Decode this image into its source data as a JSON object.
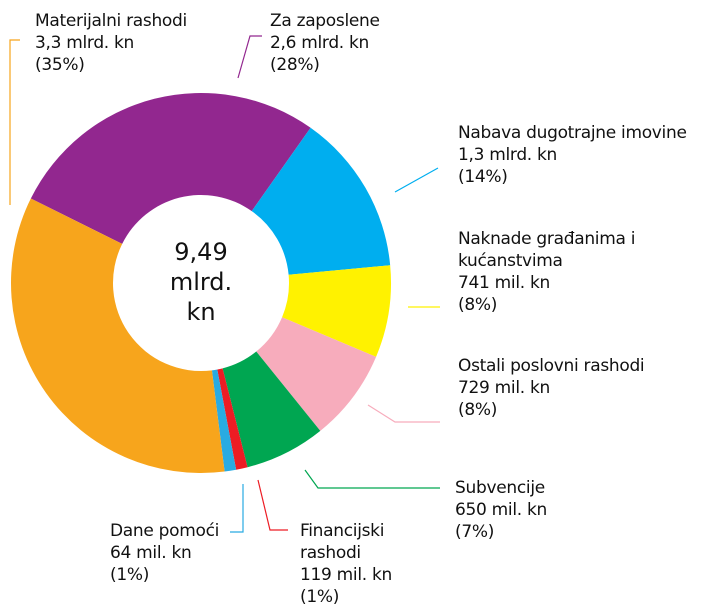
{
  "chart_data": {
    "type": "pie",
    "donut": true,
    "center_label": [
      "9,49",
      "mlrd.",
      "kn"
    ],
    "categories": [
      "Za zaposlene",
      "Nabava dugotrajne imovine",
      "Naknade građanima i kućanstvima",
      "Ostali poslovni rashodi",
      "Subvencije",
      "Financijski rashodi",
      "Dane pomoći",
      "Materijalni rashodi"
    ],
    "values": [
      28,
      14,
      8,
      8,
      7,
      1,
      1,
      35
    ],
    "value_labels": [
      "(28%)",
      "(14%)",
      "(8%)",
      "(8%)",
      "(7%)",
      "(1%)",
      "(1%)",
      "(35%)"
    ],
    "amount_labels": [
      "2,6 mlrd. kn",
      "1,3 mlrd. kn",
      "741 mil. kn",
      "729 mil. kn",
      "650 mil. kn",
      "119 mil. kn",
      "64 mil. kn",
      "3,3 mlrd. kn"
    ],
    "colors": [
      "#92278f",
      "#00aeef",
      "#fff200",
      "#f7acbc",
      "#00a651",
      "#ed1c24",
      "#29abe2",
      "#f7a51c"
    ]
  }
}
